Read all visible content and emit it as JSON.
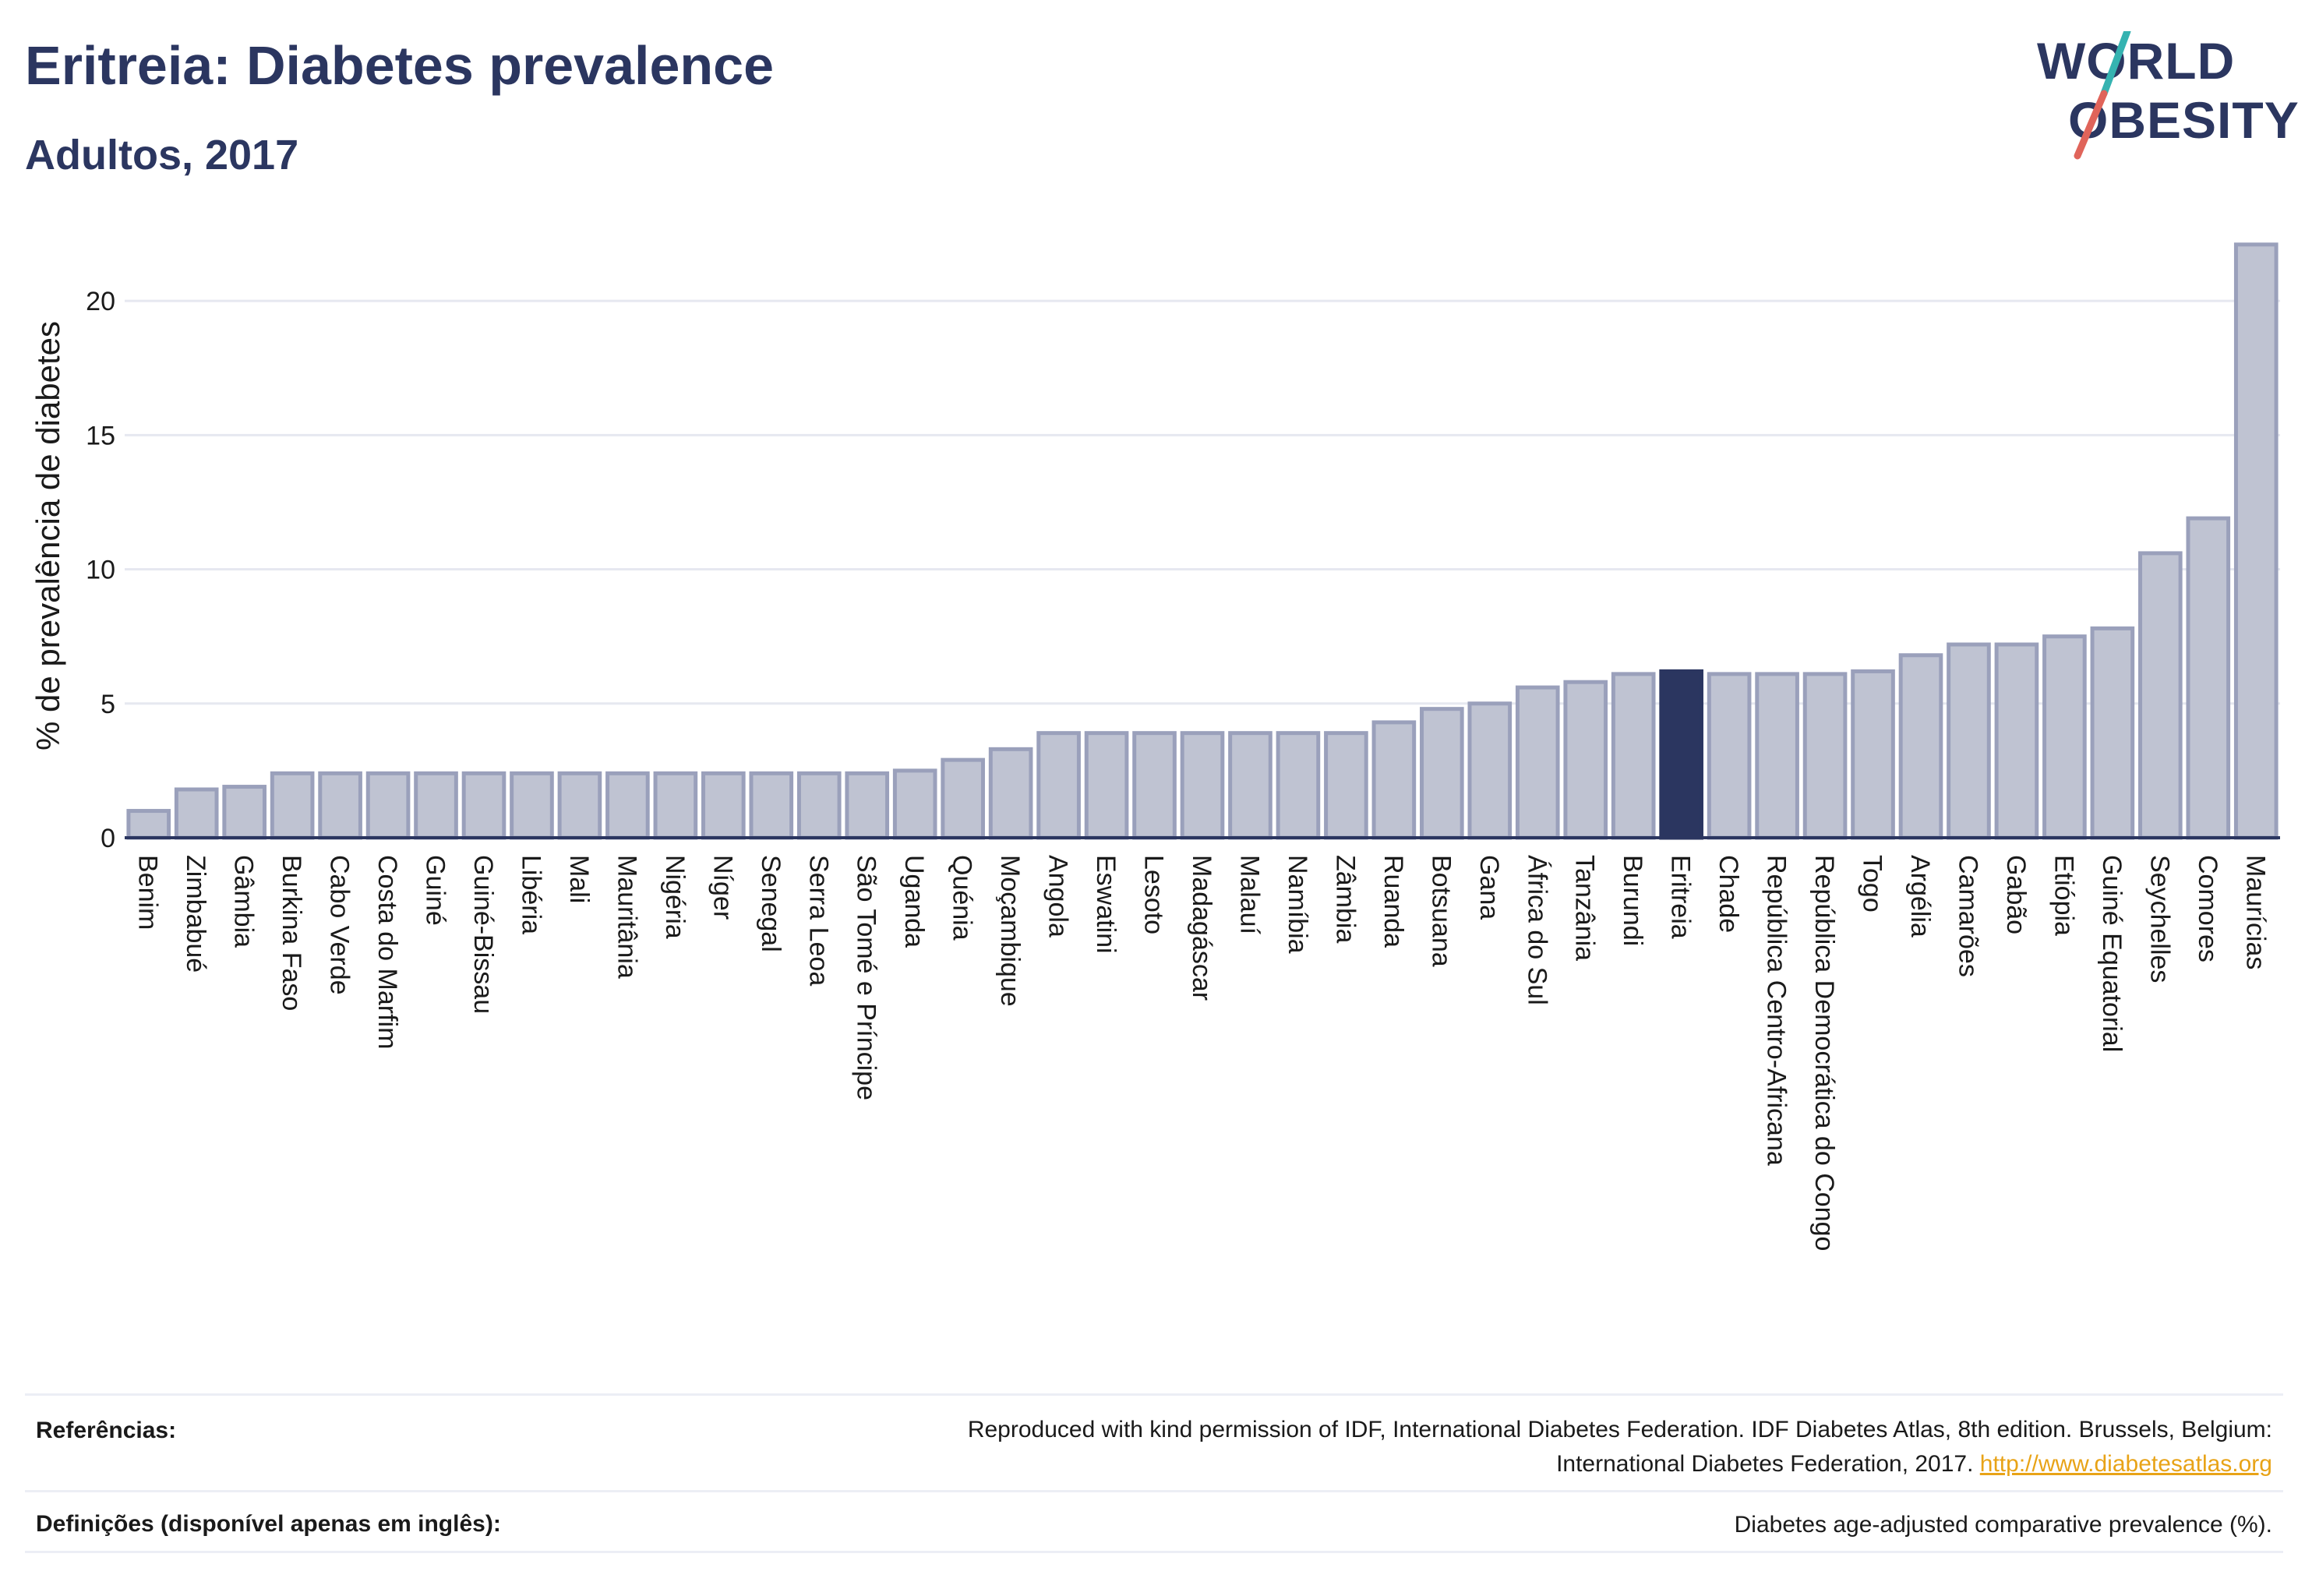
{
  "header": {
    "title": "Eritreia: Diabetes prevalence",
    "subtitle": "Adultos, 2017"
  },
  "logo": {
    "line1": "WORLD",
    "line2": "OBESITY",
    "accent_teal": "#35b3b1",
    "accent_red": "#e0645a"
  },
  "colors": {
    "bar": "#bfc3d2",
    "bar_stroke": "#9aa0bb",
    "highlight": "#2b3660",
    "grid": "#e6e8f0",
    "axis": "#2b3660"
  },
  "chart_data": {
    "type": "bar",
    "title": "",
    "xlabel": "",
    "ylabel": "% de prevalência de diabetes",
    "ylim": [
      0,
      22.5
    ],
    "yticks": [
      0,
      5,
      10,
      15,
      20
    ],
    "grid": true,
    "highlight": "Eritreia",
    "categories": [
      "Benim",
      "Zimbabué",
      "Gâmbia",
      "Burkina Faso",
      "Cabo Verde",
      "Costa do Marfim",
      "Guiné",
      "Guiné-Bissau",
      "Libéria",
      "Mali",
      "Mauritânia",
      "Nigéria",
      "Níger",
      "Senegal",
      "Serra Leoa",
      "São Tomé e Príncipe",
      "Uganda",
      "Quénia",
      "Moçambique",
      "Angola",
      "Eswatini",
      "Lesoto",
      "Madagáscar",
      "Malauí",
      "Namíbia",
      "Zâmbia",
      "Ruanda",
      "Botsuana",
      "Gana",
      "África do Sul",
      "Tanzânia",
      "Burundi",
      "Eritreia",
      "Chade",
      "República Centro-Africana",
      "República Democrática do Congo",
      "Togo",
      "Argélia",
      "Camarões",
      "Gabão",
      "Etiópia",
      "Guiné Equatorial",
      "Seychelles",
      "Comores",
      "Maurícias"
    ],
    "values": [
      1.0,
      1.8,
      1.9,
      2.4,
      2.4,
      2.4,
      2.4,
      2.4,
      2.4,
      2.4,
      2.4,
      2.4,
      2.4,
      2.4,
      2.4,
      2.4,
      2.5,
      2.9,
      3.3,
      3.9,
      3.9,
      3.9,
      3.9,
      3.9,
      3.9,
      3.9,
      4.3,
      4.8,
      5.0,
      5.6,
      5.8,
      6.1,
      6.2,
      6.1,
      6.1,
      6.1,
      6.2,
      6.8,
      7.2,
      7.2,
      7.5,
      7.8,
      10.6,
      11.9,
      22.1
    ]
  },
  "references": {
    "refs_label": "Referências:",
    "refs_text_1": "Reproduced with kind permission of IDF, International Diabetes Federation. IDF Diabetes Atlas, 8th edition. Brussels, Belgium:",
    "refs_text_2": "International Diabetes Federation, 2017.",
    "refs_link": "http://www.diabetesatlas.org",
    "defs_label": "Definições (disponível apenas em inglês):",
    "defs_text": "Diabetes age-adjusted comparative prevalence (%)."
  }
}
